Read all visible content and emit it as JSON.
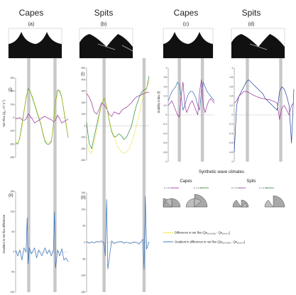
{
  "headers": {
    "capes": "Capes",
    "spits": "Spits",
    "a": "(a)",
    "b": "(b)",
    "c": "(c)",
    "d": "(d)",
    "i": "(i)",
    "ii": "(ii)"
  },
  "colors": {
    "purple": "#9b2d9b",
    "green": "#2a8a3a",
    "yellow": "#e8d800",
    "blue": "#2f6db5",
    "darkblue": "#1f3f9a",
    "gray_band": "#c8c8c8"
  },
  "legend": {
    "difference_label": "Difference in net flux (Qs",
    "difference_sub1": "(U=0.45)",
    "difference_mid": " - Qs",
    "difference_sub2": "(U=0.7)",
    "difference_end": ")",
    "gradient_label": "Gradient in difference in net flux (Qs",
    "gradient_sub1": "(U=0.45)",
    "gradient_mid": " - Qs",
    "gradient_sub2": "(U=0.7)",
    "gradient_end": ")"
  },
  "synthetic": {
    "title": "Synthetic wave climates",
    "capes": "Capes",
    "spits": "Spits",
    "u_labels": [
      "U = 0.70",
      "U = 0.45",
      "U = 0.70",
      "U = 0.45"
    ]
  },
  "chart_data": [
    {
      "id": "a-i",
      "type": "line",
      "panel_label": "(i)",
      "ylabel": "Net Flux (Q",
      "ylabel_sub": "s",
      "ylabel_end": ", m",
      "ylabel_sup": "3",
      "ylabel_tail": " s",
      "ylabel_sup2": "-1",
      "ylabel_close": ")",
      "ylim": [
        -300,
        300
      ],
      "yticks": [
        -300,
        -200,
        -100,
        0,
        100,
        200,
        300
      ],
      "ytick_labels": [
        "-300",
        "-200",
        "-100",
        "0",
        "100",
        "200",
        "300"
      ],
      "x": [
        0,
        0.04,
        0.08,
        0.12,
        0.16,
        0.2,
        0.24,
        0.28,
        0.32,
        0.36,
        0.4,
        0.44,
        0.48,
        0.52,
        0.56,
        0.6,
        0.64,
        0.68,
        0.72,
        0.76,
        0.8,
        0.84,
        0.88,
        0.92,
        0.96,
        1
      ],
      "series": [
        {
          "color_key": "purple",
          "values": [
            -10,
            -5,
            0,
            -15,
            -20,
            -10,
            30,
            10,
            -10,
            -40,
            -30,
            -20,
            -10,
            5,
            10,
            0,
            -10,
            -15,
            -30,
            -20,
            20,
            -10,
            -40,
            -30,
            -20,
            -10
          ]
        },
        {
          "color_key": "green",
          "values": [
            -190,
            -200,
            -150,
            -50,
            50,
            150,
            220,
            200,
            150,
            100,
            50,
            0,
            -50,
            -120,
            -180,
            -200,
            -200,
            -180,
            -50,
            120,
            210,
            200,
            150,
            50,
            -50,
            -150
          ]
        },
        {
          "color_key": "yellow",
          "values": [
            -180,
            -190,
            -160,
            -70,
            40,
            140,
            210,
            200,
            160,
            110,
            60,
            10,
            -40,
            -110,
            -170,
            -190,
            -190,
            -170,
            -60,
            110,
            200,
            210,
            160,
            60,
            -40,
            -140
          ]
        }
      ]
    },
    {
      "id": "b-i",
      "type": "line",
      "panel_label": "(i)",
      "ylim": [
        -300,
        500
      ],
      "yticks": [
        -300,
        -200,
        -100,
        0,
        100,
        200,
        300,
        400,
        500
      ],
      "ytick_labels": [
        "-300",
        "-200",
        "-100",
        "0",
        "100",
        "200",
        "300",
        "400",
        "500"
      ],
      "x": [
        0,
        0.04,
        0.08,
        0.12,
        0.16,
        0.2,
        0.24,
        0.28,
        0.32,
        0.36,
        0.4,
        0.44,
        0.48,
        0.52,
        0.56,
        0.6,
        0.64,
        0.68,
        0.72,
        0.76,
        0.8,
        0.84,
        0.88,
        0.92,
        0.96,
        1
      ],
      "series": [
        {
          "color_key": "purple",
          "values": [
            280,
            250,
            200,
            120,
            100,
            140,
            200,
            180,
            150,
            100,
            80,
            120,
            110,
            100,
            130,
            150,
            160,
            180,
            200,
            230,
            250,
            260,
            270,
            280,
            290,
            290
          ]
        },
        {
          "color_key": "green",
          "values": [
            30,
            -150,
            -200,
            -100,
            0,
            100,
            180,
            240,
            170,
            50,
            -50,
            -100,
            -90,
            -70,
            -90,
            -120,
            -100,
            -50,
            0,
            100,
            180,
            240,
            290,
            310,
            320,
            430
          ]
        },
        {
          "color_key": "yellow",
          "values": [
            -150,
            -220,
            -240,
            -150,
            -50,
            80,
            180,
            240,
            170,
            60,
            -40,
            -90,
            -160,
            -200,
            -230,
            -240,
            -230,
            -200,
            -150,
            -80,
            0,
            100,
            200,
            280,
            330,
            380
          ]
        }
      ]
    },
    {
      "id": "a-ii",
      "type": "line",
      "panel_label": "(ii)",
      "ylabel": "Gradient in net flux difference",
      "ylim": [
        -100,
        150
      ],
      "yticks": [
        -100,
        -50,
        0,
        50,
        100,
        150
      ],
      "ytick_labels": [
        "-100",
        "-50",
        "0",
        "50",
        "100",
        "150"
      ],
      "x": [
        0,
        0.04,
        0.08,
        0.12,
        0.16,
        0.2,
        0.22,
        0.24,
        0.26,
        0.3,
        0.36,
        0.4,
        0.44,
        0.5,
        0.56,
        0.6,
        0.64,
        0.68,
        0.72,
        0.74,
        0.76,
        0.8,
        0.84,
        0.88,
        0.92,
        0.96,
        1
      ],
      "series": [
        {
          "color_key": "blue",
          "values": [
            5,
            -10,
            5,
            -20,
            10,
            0,
            85,
            -30,
            10,
            -5,
            10,
            -15,
            5,
            -10,
            10,
            -5,
            5,
            -10,
            5,
            100,
            -40,
            5,
            -10,
            8,
            -20,
            -15,
            -25
          ]
        }
      ]
    },
    {
      "id": "b-ii",
      "type": "line",
      "panel_label": "(ii)",
      "ylim": [
        -150,
        150
      ],
      "yticks": [
        -150,
        -100,
        -50,
        0,
        50,
        100,
        150
      ],
      "ytick_labels": [
        "-150",
        "-100",
        "-50",
        "0",
        "50",
        "100",
        "150"
      ],
      "x": [
        0,
        0.04,
        0.08,
        0.12,
        0.16,
        0.2,
        0.24,
        0.28,
        0.3,
        0.32,
        0.34,
        0.4,
        0.44,
        0.5,
        0.56,
        0.6,
        0.64,
        0.7,
        0.76,
        0.8,
        0.84,
        0.9,
        0.92,
        0.94,
        0.96,
        1
      ],
      "series": [
        {
          "color_key": "blue",
          "values": [
            3,
            -2,
            2,
            -1,
            3,
            2,
            5,
            -2,
            -40,
            130,
            -80,
            5,
            -3,
            2,
            3,
            -2,
            1,
            -3,
            2,
            0,
            -5,
            10,
            -80,
            140,
            -20,
            2
          ]
        }
      ]
    },
    {
      "id": "c",
      "type": "line",
      "ylabel": "Stability index (",
      "ylabel_italic": "f",
      "ylabel_end": ")",
      "ylim": [
        -1,
        1
      ],
      "yticks": [
        -1,
        -0.8,
        -0.6,
        -0.4,
        -0.2,
        0,
        0.2,
        0.4,
        0.6,
        0.8,
        1
      ],
      "ytick_labels": [
        "-1",
        "-0.8",
        "-0.6",
        "-0.4",
        "-0.2",
        "0",
        "0.2",
        "0.4",
        "0.6",
        "0.8",
        "1"
      ],
      "x": [
        0,
        0.04,
        0.08,
        0.12,
        0.16,
        0.2,
        0.24,
        0.28,
        0.32,
        0.36,
        0.4,
        0.44,
        0.48,
        0.52,
        0.56,
        0.6,
        0.64,
        0.68,
        0.72,
        0.76,
        0.8,
        0.84,
        0.88,
        0.92,
        0.96,
        1
      ],
      "series": [
        {
          "color_key": "blue",
          "values": [
            0.3,
            0.4,
            0.5,
            0.55,
            0.6,
            0.7,
            0.65,
            0.4,
            0.1,
            0.2,
            0.35,
            0.45,
            0.5,
            0.5,
            0.45,
            0.35,
            0.2,
            0.1,
            0.5,
            0.7,
            0.6,
            0.5,
            0.45,
            0.4,
            0.35,
            0.3
          ]
        },
        {
          "color_key": "purple",
          "values": [
            0.2,
            0.25,
            0.3,
            0.2,
            0.1,
            0.0,
            -0.05,
            0.4,
            0.7,
            0.2,
            0.05,
            0.15,
            0.25,
            0.3,
            0.2,
            0.1,
            0.0,
            0.5,
            0.75,
            0.2,
            0.05,
            0.2,
            0.3,
            0.35,
            0.3,
            0.25
          ]
        }
      ]
    },
    {
      "id": "d",
      "type": "line",
      "ylim": [
        -1,
        1
      ],
      "yticks": [
        -1,
        -0.8,
        -0.6,
        -0.4,
        -0.2,
        0,
        0.2,
        0.4,
        0.6,
        0.8,
        1
      ],
      "ytick_labels": [
        "-1",
        "-0.8",
        "-0.6",
        "-0.4",
        "-0.2",
        "0",
        "0.2",
        "0.4",
        "0.6",
        "0.8",
        "1"
      ],
      "x": [
        0,
        0.04,
        0.08,
        0.12,
        0.16,
        0.2,
        0.24,
        0.28,
        0.32,
        0.36,
        0.4,
        0.44,
        0.48,
        0.52,
        0.56,
        0.6,
        0.64,
        0.68,
        0.72,
        0.76,
        0.8,
        0.84,
        0.88,
        0.92,
        0.96,
        1
      ],
      "series": [
        {
          "color_key": "darkblue",
          "values": [
            -0.8,
            0.2,
            0.4,
            0.5,
            0.6,
            0.7,
            0.75,
            0.7,
            0.65,
            0.6,
            0.55,
            0.5,
            0.45,
            0.35,
            0.3,
            0.25,
            0.2,
            0.15,
            0.1,
            0.5,
            0.6,
            0.55,
            0.4,
            0.2,
            -0.6,
            0.55
          ]
        },
        {
          "color_key": "purple",
          "values": [
            0.25,
            0.3,
            0.4,
            0.45,
            0.5,
            0.5,
            0.48,
            0.45,
            0.42,
            0.4,
            0.38,
            0.36,
            0.35,
            0.34,
            0.33,
            0.32,
            0.3,
            0.28,
            0.25,
            -0.1,
            0.15,
            0.2,
            0.1,
            0.0,
            0.2,
            0.25
          ]
        }
      ]
    }
  ]
}
